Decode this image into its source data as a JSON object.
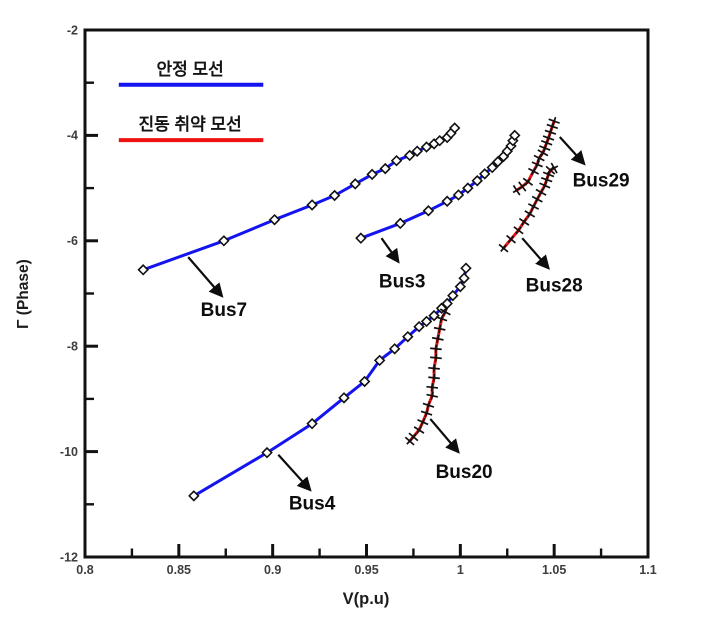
{
  "chart_data": {
    "type": "line",
    "title": "",
    "xlabel": "V(p.u)",
    "ylabel": "Γ (Phase)",
    "xlim": [
      0.8,
      1.1
    ],
    "ylim": [
      -12,
      -2
    ],
    "grid": false,
    "x_major_ticks": [
      0.8,
      0.85,
      0.9,
      0.95,
      1.0,
      1.05,
      1.1
    ],
    "x_tick_labels": [
      "0.8",
      "0.85",
      "0.9",
      "0.95",
      "1",
      "1.05",
      "1.1"
    ],
    "x_minor_ticks": [
      0.825,
      0.875,
      0.925,
      0.975,
      1.025,
      1.075
    ],
    "y_major_ticks": [
      -2,
      -4,
      -6,
      -8,
      -10,
      -12
    ],
    "y_tick_labels": [
      "-2",
      "-4",
      "-6",
      "-8",
      "-10",
      "-12"
    ],
    "y_minor_ticks": [
      -3,
      -5,
      -7,
      -9,
      -11
    ],
    "colors": {
      "stable": "#1414f0",
      "vulnerable": "#ee1111",
      "marker_edge": "#111111",
      "axis": "#111111",
      "tick_label": "#3d3d3d",
      "annotation": "#0d0d0d"
    },
    "legend": {
      "position": "upper-left-inside",
      "entries": [
        {
          "label": "안정 모선",
          "category": "stable",
          "color": "#1414f0",
          "line_y": -3.04,
          "line_x1": 0.818,
          "line_x2": 0.895,
          "text_x": 0.856,
          "text_y": -2.76
        },
        {
          "label": "진동 취약 모선",
          "category": "vulnerable",
          "color": "#ee1111",
          "line_y": -4.09,
          "line_x1": 0.818,
          "line_x2": 0.895,
          "text_x": 0.856,
          "text_y": -3.8
        }
      ]
    },
    "series": [
      {
        "name": "Bus7",
        "category": "stable",
        "color": "#1414f0",
        "marker": "diamond",
        "points": [
          [
            0.831,
            -6.55
          ],
          [
            0.874,
            -6.0
          ],
          [
            0.901,
            -5.6
          ],
          [
            0.921,
            -5.32
          ],
          [
            0.933,
            -5.14
          ],
          [
            0.944,
            -4.92
          ],
          [
            0.953,
            -4.74
          ],
          [
            0.96,
            -4.63
          ],
          [
            0.966,
            -4.48
          ],
          [
            0.973,
            -4.38
          ],
          [
            0.977,
            -4.3
          ],
          [
            0.982,
            -4.22
          ],
          [
            0.986,
            -4.16
          ],
          [
            0.989,
            -4.1
          ],
          [
            0.993,
            -4.04
          ],
          [
            0.995,
            -3.96
          ],
          [
            0.997,
            -3.86
          ]
        ]
      },
      {
        "name": "Bus3",
        "category": "stable",
        "color": "#1414f0",
        "marker": "diamond",
        "points": [
          [
            0.947,
            -5.95
          ],
          [
            0.968,
            -5.67
          ],
          [
            0.983,
            -5.43
          ],
          [
            0.993,
            -5.25
          ],
          [
            0.999,
            -5.13
          ],
          [
            1.004,
            -5.0
          ],
          [
            1.009,
            -4.86
          ],
          [
            1.013,
            -4.73
          ],
          [
            1.017,
            -4.61
          ],
          [
            1.02,
            -4.5
          ],
          [
            1.023,
            -4.4
          ],
          [
            1.025,
            -4.3
          ],
          [
            1.027,
            -4.2
          ],
          [
            1.028,
            -4.1
          ],
          [
            1.029,
            -4.0
          ]
        ]
      },
      {
        "name": "Bus4",
        "category": "stable",
        "color": "#1414f0",
        "marker": "diamond",
        "points": [
          [
            0.858,
            -10.84
          ],
          [
            0.897,
            -10.02
          ],
          [
            0.921,
            -9.47
          ],
          [
            0.938,
            -8.98
          ],
          [
            0.949,
            -8.67
          ],
          [
            0.957,
            -8.27
          ],
          [
            0.965,
            -8.05
          ],
          [
            0.972,
            -7.82
          ],
          [
            0.978,
            -7.63
          ],
          [
            0.982,
            -7.53
          ],
          [
            0.986,
            -7.42
          ],
          [
            0.99,
            -7.28
          ],
          [
            0.993,
            -7.19
          ],
          [
            0.996,
            -7.04
          ],
          [
            1.0,
            -6.87
          ],
          [
            1.002,
            -6.71
          ],
          [
            1.003,
            -6.52
          ]
        ]
      },
      {
        "name": "Bus20",
        "category": "vulnerable",
        "color": "#ee1111",
        "marker": "plus",
        "points": [
          [
            0.973,
            -9.8
          ],
          [
            0.975,
            -9.72
          ],
          [
            0.978,
            -9.59
          ],
          [
            0.98,
            -9.44
          ],
          [
            0.982,
            -9.27
          ],
          [
            0.983,
            -9.12
          ],
          [
            0.985,
            -8.94
          ],
          [
            0.985,
            -8.78
          ],
          [
            0.986,
            -8.6
          ],
          [
            0.986,
            -8.42
          ],
          [
            0.987,
            -8.22
          ],
          [
            0.987,
            -8.05
          ],
          [
            0.988,
            -7.86
          ],
          [
            0.989,
            -7.67
          ],
          [
            0.99,
            -7.48
          ],
          [
            0.992,
            -7.35
          ]
        ]
      },
      {
        "name": "Bus28",
        "category": "vulnerable",
        "color": "#ee1111",
        "marker": "plus",
        "points": [
          [
            1.023,
            -6.14
          ],
          [
            1.027,
            -5.97
          ],
          [
            1.031,
            -5.8
          ],
          [
            1.034,
            -5.64
          ],
          [
            1.037,
            -5.49
          ],
          [
            1.039,
            -5.35
          ],
          [
            1.041,
            -5.21
          ],
          [
            1.043,
            -5.08
          ],
          [
            1.045,
            -4.95
          ],
          [
            1.046,
            -4.84
          ],
          [
            1.047,
            -4.74
          ],
          [
            1.048,
            -4.66
          ],
          [
            1.05,
            -4.62
          ]
        ]
      },
      {
        "name": "Bus29",
        "category": "vulnerable",
        "color": "#ee1111",
        "marker": "plus",
        "points": [
          [
            1.03,
            -5.04
          ],
          [
            1.033,
            -4.97
          ],
          [
            1.036,
            -4.88
          ],
          [
            1.039,
            -4.68
          ],
          [
            1.041,
            -4.55
          ],
          [
            1.042,
            -4.43
          ],
          [
            1.044,
            -4.33
          ],
          [
            1.045,
            -4.24
          ],
          [
            1.046,
            -4.14
          ],
          [
            1.047,
            -4.05
          ],
          [
            1.048,
            -3.94
          ],
          [
            1.049,
            -3.83
          ],
          [
            1.05,
            -3.73
          ]
        ]
      }
    ],
    "annotations": [
      {
        "label": "Bus7",
        "text_x": 0.874,
        "text_y": -7.3,
        "arrow_from_x": 0.855,
        "arrow_from_y": -6.31,
        "arrow_to_x": 0.873,
        "arrow_to_y": -7.05
      },
      {
        "label": "Bus3",
        "text_x": 0.969,
        "text_y": -6.76,
        "arrow_from_x": 0.958,
        "arrow_from_y": -5.95,
        "arrow_to_x": 0.967,
        "arrow_to_y": -6.4
      },
      {
        "label": "Bus4",
        "text_x": 0.921,
        "text_y": -10.98,
        "arrow_from_x": 0.903,
        "arrow_from_y": -10.06,
        "arrow_to_x": 0.92,
        "arrow_to_y": -10.73
      },
      {
        "label": "Bus20",
        "text_x": 1.002,
        "text_y": -10.38,
        "arrow_from_x": 0.984,
        "arrow_from_y": -9.38,
        "arrow_to_x": 0.999,
        "arrow_to_y": -10.01
      },
      {
        "label": "Bus28",
        "text_x": 1.05,
        "text_y": -6.84,
        "arrow_from_x": 1.033,
        "arrow_from_y": -5.95,
        "arrow_to_x": 1.047,
        "arrow_to_y": -6.52
      },
      {
        "label": "Bus29",
        "text_x": 1.075,
        "text_y": -4.85,
        "arrow_from_x": 1.053,
        "arrow_from_y": -4.03,
        "arrow_to_x": 1.066,
        "arrow_to_y": -4.54
      }
    ]
  }
}
